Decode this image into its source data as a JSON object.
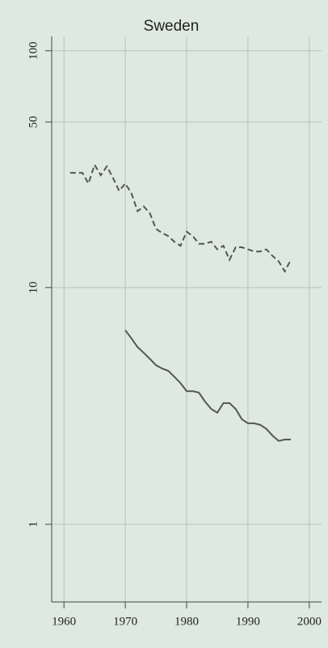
{
  "chart_data": {
    "type": "line",
    "title": "Sweden",
    "x": [
      1961,
      1962,
      1963,
      1964,
      1965,
      1966,
      1967,
      1968,
      1969,
      1970,
      1971,
      1972,
      1973,
      1974,
      1975,
      1976,
      1977,
      1978,
      1979,
      1980,
      1981,
      1982,
      1983,
      1984,
      1985,
      1986,
      1987,
      1988,
      1989,
      1990,
      1991,
      1992,
      1993,
      1994,
      1995,
      1996,
      1997
    ],
    "series": [
      {
        "color": "#555555",
        "dash": true,
        "values": [
          30.5,
          30.5,
          30.5,
          27.5,
          33,
          29.8,
          32.5,
          29,
          25.6,
          27.5,
          25,
          21,
          22,
          20.6,
          17.7,
          17,
          16.5,
          15.6,
          15,
          17.2,
          16.5,
          15.3,
          15.3,
          15.6,
          14.5,
          15,
          13.1,
          14.8,
          14.8,
          14.5,
          14.2,
          14.2,
          14.5,
          13.6,
          12.9,
          11.7,
          13.1
        ]
      },
      {
        "color": "#555555",
        "dash": false,
        "values": [
          null,
          null,
          null,
          null,
          null,
          null,
          null,
          null,
          null,
          6.6,
          6.1,
          5.6,
          5.3,
          5.0,
          4.7,
          4.55,
          4.45,
          4.2,
          3.95,
          3.65,
          3.65,
          3.6,
          3.3,
          3.07,
          2.96,
          3.25,
          3.25,
          3.07,
          2.78,
          2.67,
          2.67,
          2.63,
          2.53,
          2.37,
          2.25,
          2.28,
          2.28
        ]
      }
    ],
    "xlim": [
      1958,
      2002
    ],
    "xticks": [
      1960,
      1970,
      1980,
      1990,
      2000
    ],
    "ylim": [
      0.47,
      115
    ],
    "yticks": [
      1,
      10,
      50,
      100
    ],
    "log_y": true,
    "grid": true
  }
}
